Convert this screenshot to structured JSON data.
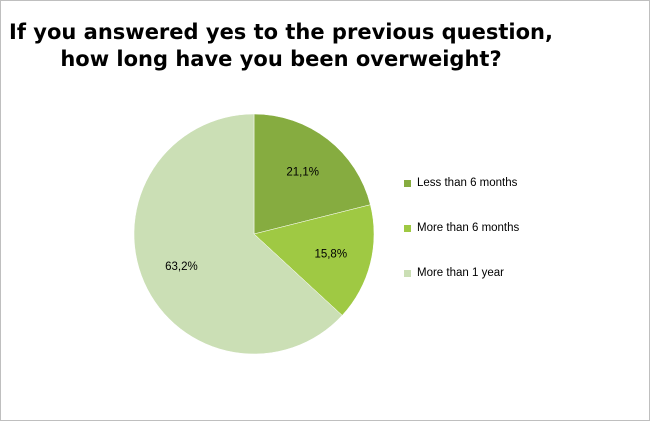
{
  "chart_data": {
    "type": "pie",
    "title": [
      "If you answered yes to the previous question,",
      "how long have you been overweight?"
    ],
    "categories": [
      "Less than 6 months",
      "More than 6 months",
      "More than 1 year"
    ],
    "values": [
      21.1,
      15.8,
      63.2
    ],
    "labels": [
      "21,1%",
      "15,8%",
      "63,2%"
    ],
    "colors": [
      "#86ac40",
      "#9fc943",
      "#cbdfb5"
    ],
    "legend_position": "right"
  }
}
